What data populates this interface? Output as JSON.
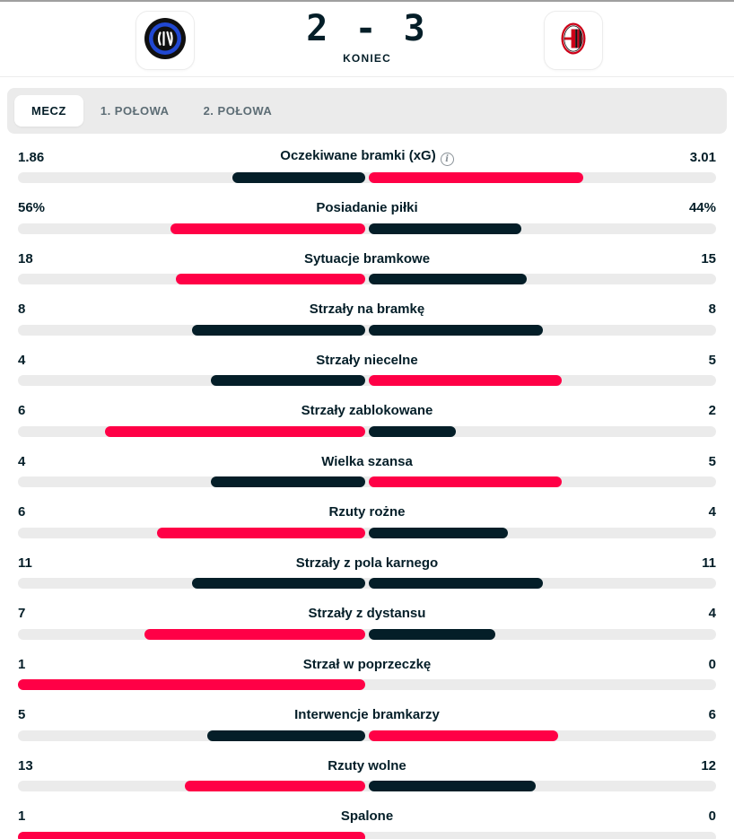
{
  "header": {
    "home_logo": "inter-logo",
    "away_logo": "milan-logo",
    "score": "2 - 3",
    "status": "KONIEC"
  },
  "tabs": [
    {
      "label": "MECZ",
      "active": true
    },
    {
      "label": "1. POŁOWA",
      "active": false
    },
    {
      "label": "2. POŁOWA",
      "active": false
    }
  ],
  "colors": {
    "accent": "#ff0046",
    "dark": "#041e28",
    "track": "#ebebeb"
  },
  "stats": [
    {
      "label": "Oczekiwane bramki (xG)",
      "home": "1.86",
      "away": "3.01",
      "home_val": 1.86,
      "away_val": 3.01,
      "highlight": "away",
      "info": true
    },
    {
      "label": "Posiadanie piłki",
      "home": "56%",
      "away": "44%",
      "home_val": 56,
      "away_val": 44,
      "highlight": "home"
    },
    {
      "label": "Sytuacje bramkowe",
      "home": "18",
      "away": "15",
      "home_val": 18,
      "away_val": 15,
      "highlight": "home"
    },
    {
      "label": "Strzały na bramkę",
      "home": "8",
      "away": "8",
      "home_val": 8,
      "away_val": 8,
      "highlight": "none"
    },
    {
      "label": "Strzały niecelne",
      "home": "4",
      "away": "5",
      "home_val": 4,
      "away_val": 5,
      "highlight": "away"
    },
    {
      "label": "Strzały zablokowane",
      "home": "6",
      "away": "2",
      "home_val": 6,
      "away_val": 2,
      "highlight": "home"
    },
    {
      "label": "Wielka szansa",
      "home": "4",
      "away": "5",
      "home_val": 4,
      "away_val": 5,
      "highlight": "away"
    },
    {
      "label": "Rzuty rożne",
      "home": "6",
      "away": "4",
      "home_val": 6,
      "away_val": 4,
      "highlight": "home"
    },
    {
      "label": "Strzały z pola karnego",
      "home": "11",
      "away": "11",
      "home_val": 11,
      "away_val": 11,
      "highlight": "none"
    },
    {
      "label": "Strzały z dystansu",
      "home": "7",
      "away": "4",
      "home_val": 7,
      "away_val": 4,
      "highlight": "home"
    },
    {
      "label": "Strzał w poprzeczkę",
      "home": "1",
      "away": "0",
      "home_val": 1,
      "away_val": 0,
      "highlight": "home"
    },
    {
      "label": "Interwencje bramkarzy",
      "home": "5",
      "away": "6",
      "home_val": 5,
      "away_val": 6,
      "highlight": "away"
    },
    {
      "label": "Rzuty wolne",
      "home": "13",
      "away": "12",
      "home_val": 13,
      "away_val": 12,
      "highlight": "home"
    },
    {
      "label": "Spalone",
      "home": "1",
      "away": "0",
      "home_val": 1,
      "away_val": 0,
      "highlight": "home"
    }
  ]
}
